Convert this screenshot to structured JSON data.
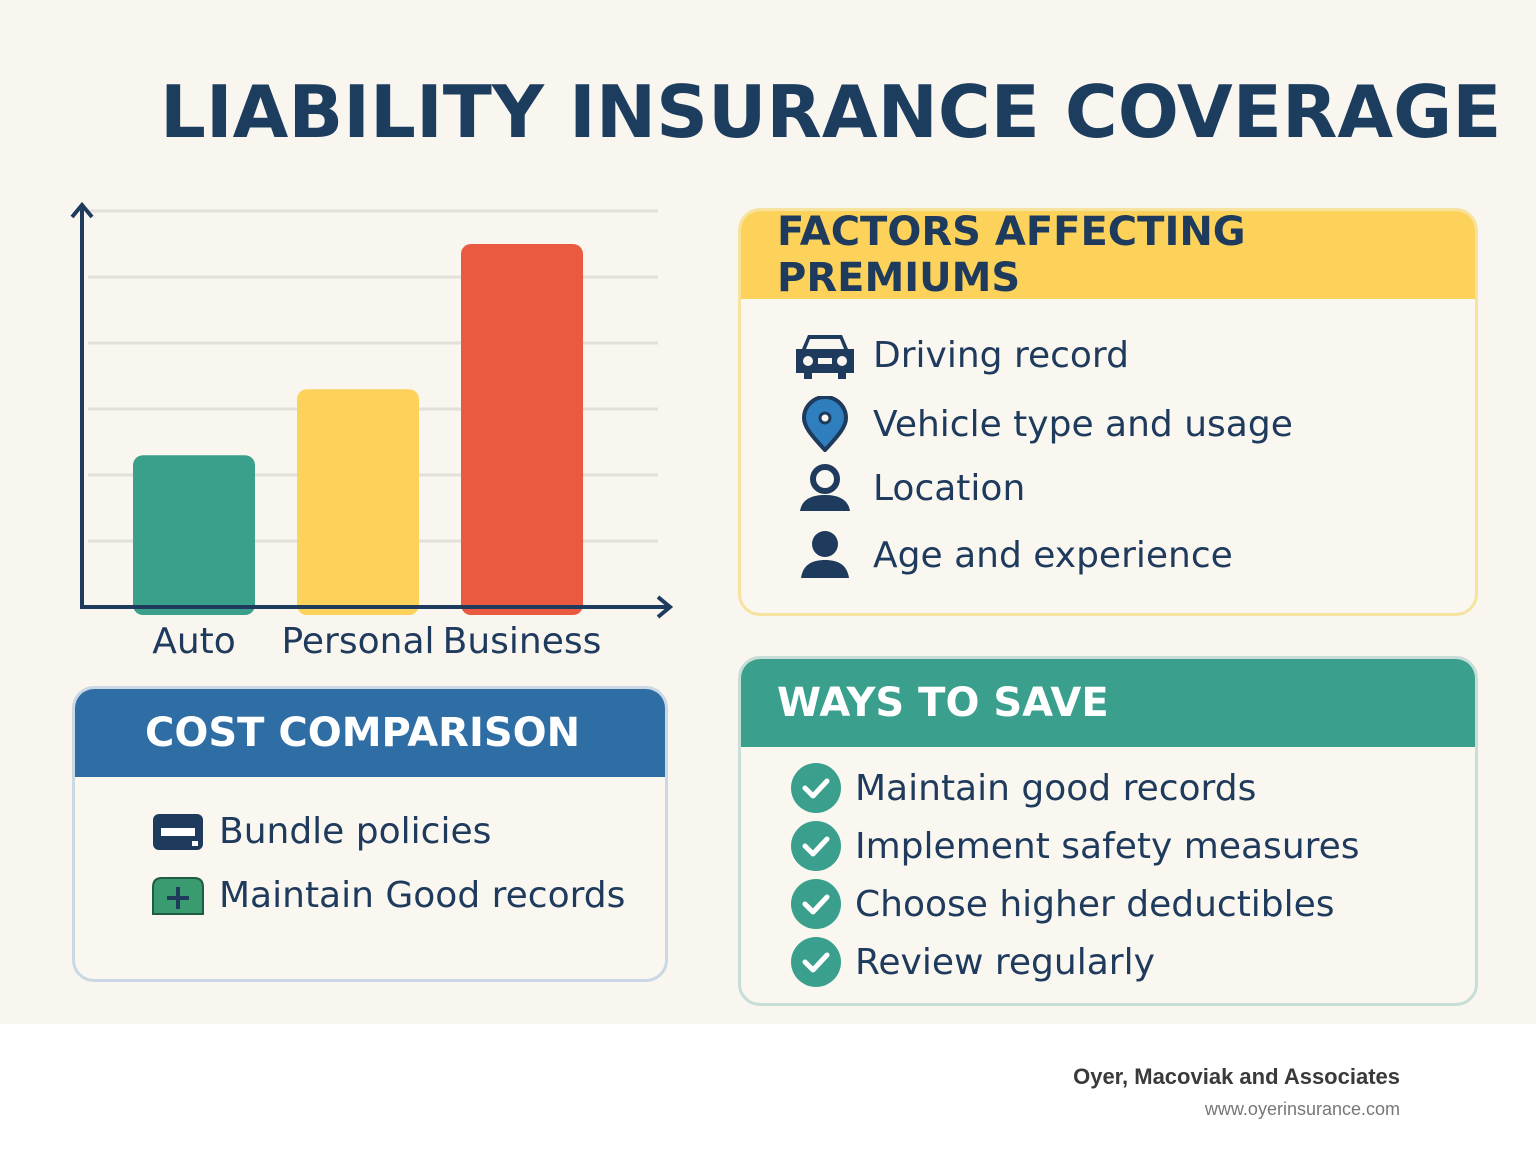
{
  "title": "LIABILITY INSURANCE COVERAGE",
  "chart_data": {
    "type": "bar",
    "categories": [
      "Auto",
      "Personal",
      "Business"
    ],
    "values": [
      2.3,
      3.3,
      5.5
    ],
    "colors": [
      "#3a9f8b",
      "#fcd25a",
      "#e95a40"
    ],
    "ylim": [
      0,
      6
    ],
    "grid": true,
    "title": "",
    "xlabel": "",
    "ylabel": ""
  },
  "factors": {
    "heading": "FACTORS AFFECTING PREMIUMS",
    "items": [
      {
        "icon": "car-icon",
        "label": "Driving record"
      },
      {
        "icon": "map-pin-icon",
        "label": "Vehicle type and usage"
      },
      {
        "icon": "location-person-icon",
        "label": "Location"
      },
      {
        "icon": "user-icon",
        "label": "Age and experience"
      }
    ]
  },
  "cost": {
    "heading": "COST COMPARISON",
    "items": [
      {
        "icon": "minus-icon",
        "label": "Bundle policies"
      },
      {
        "icon": "plus-icon",
        "label": "Maintain Good records"
      }
    ]
  },
  "save": {
    "heading": "WAYS TO SAVE",
    "items": [
      {
        "icon": "check-icon",
        "label": "Maintain good records"
      },
      {
        "icon": "check-icon",
        "label": "Implement safety measures"
      },
      {
        "icon": "check-icon",
        "label": "Choose higher deductibles"
      },
      {
        "icon": "check-icon",
        "label": "Review regularly"
      }
    ]
  },
  "colors": {
    "navy": "#1e3a5c",
    "yellow": "#fcd25a",
    "blue": "#2f6ea5",
    "teal": "#3aa08d",
    "red": "#e95a40"
  },
  "footer": {
    "company": "Oyer, Macoviak and Associates",
    "url": "www.oyerinsurance.com"
  }
}
